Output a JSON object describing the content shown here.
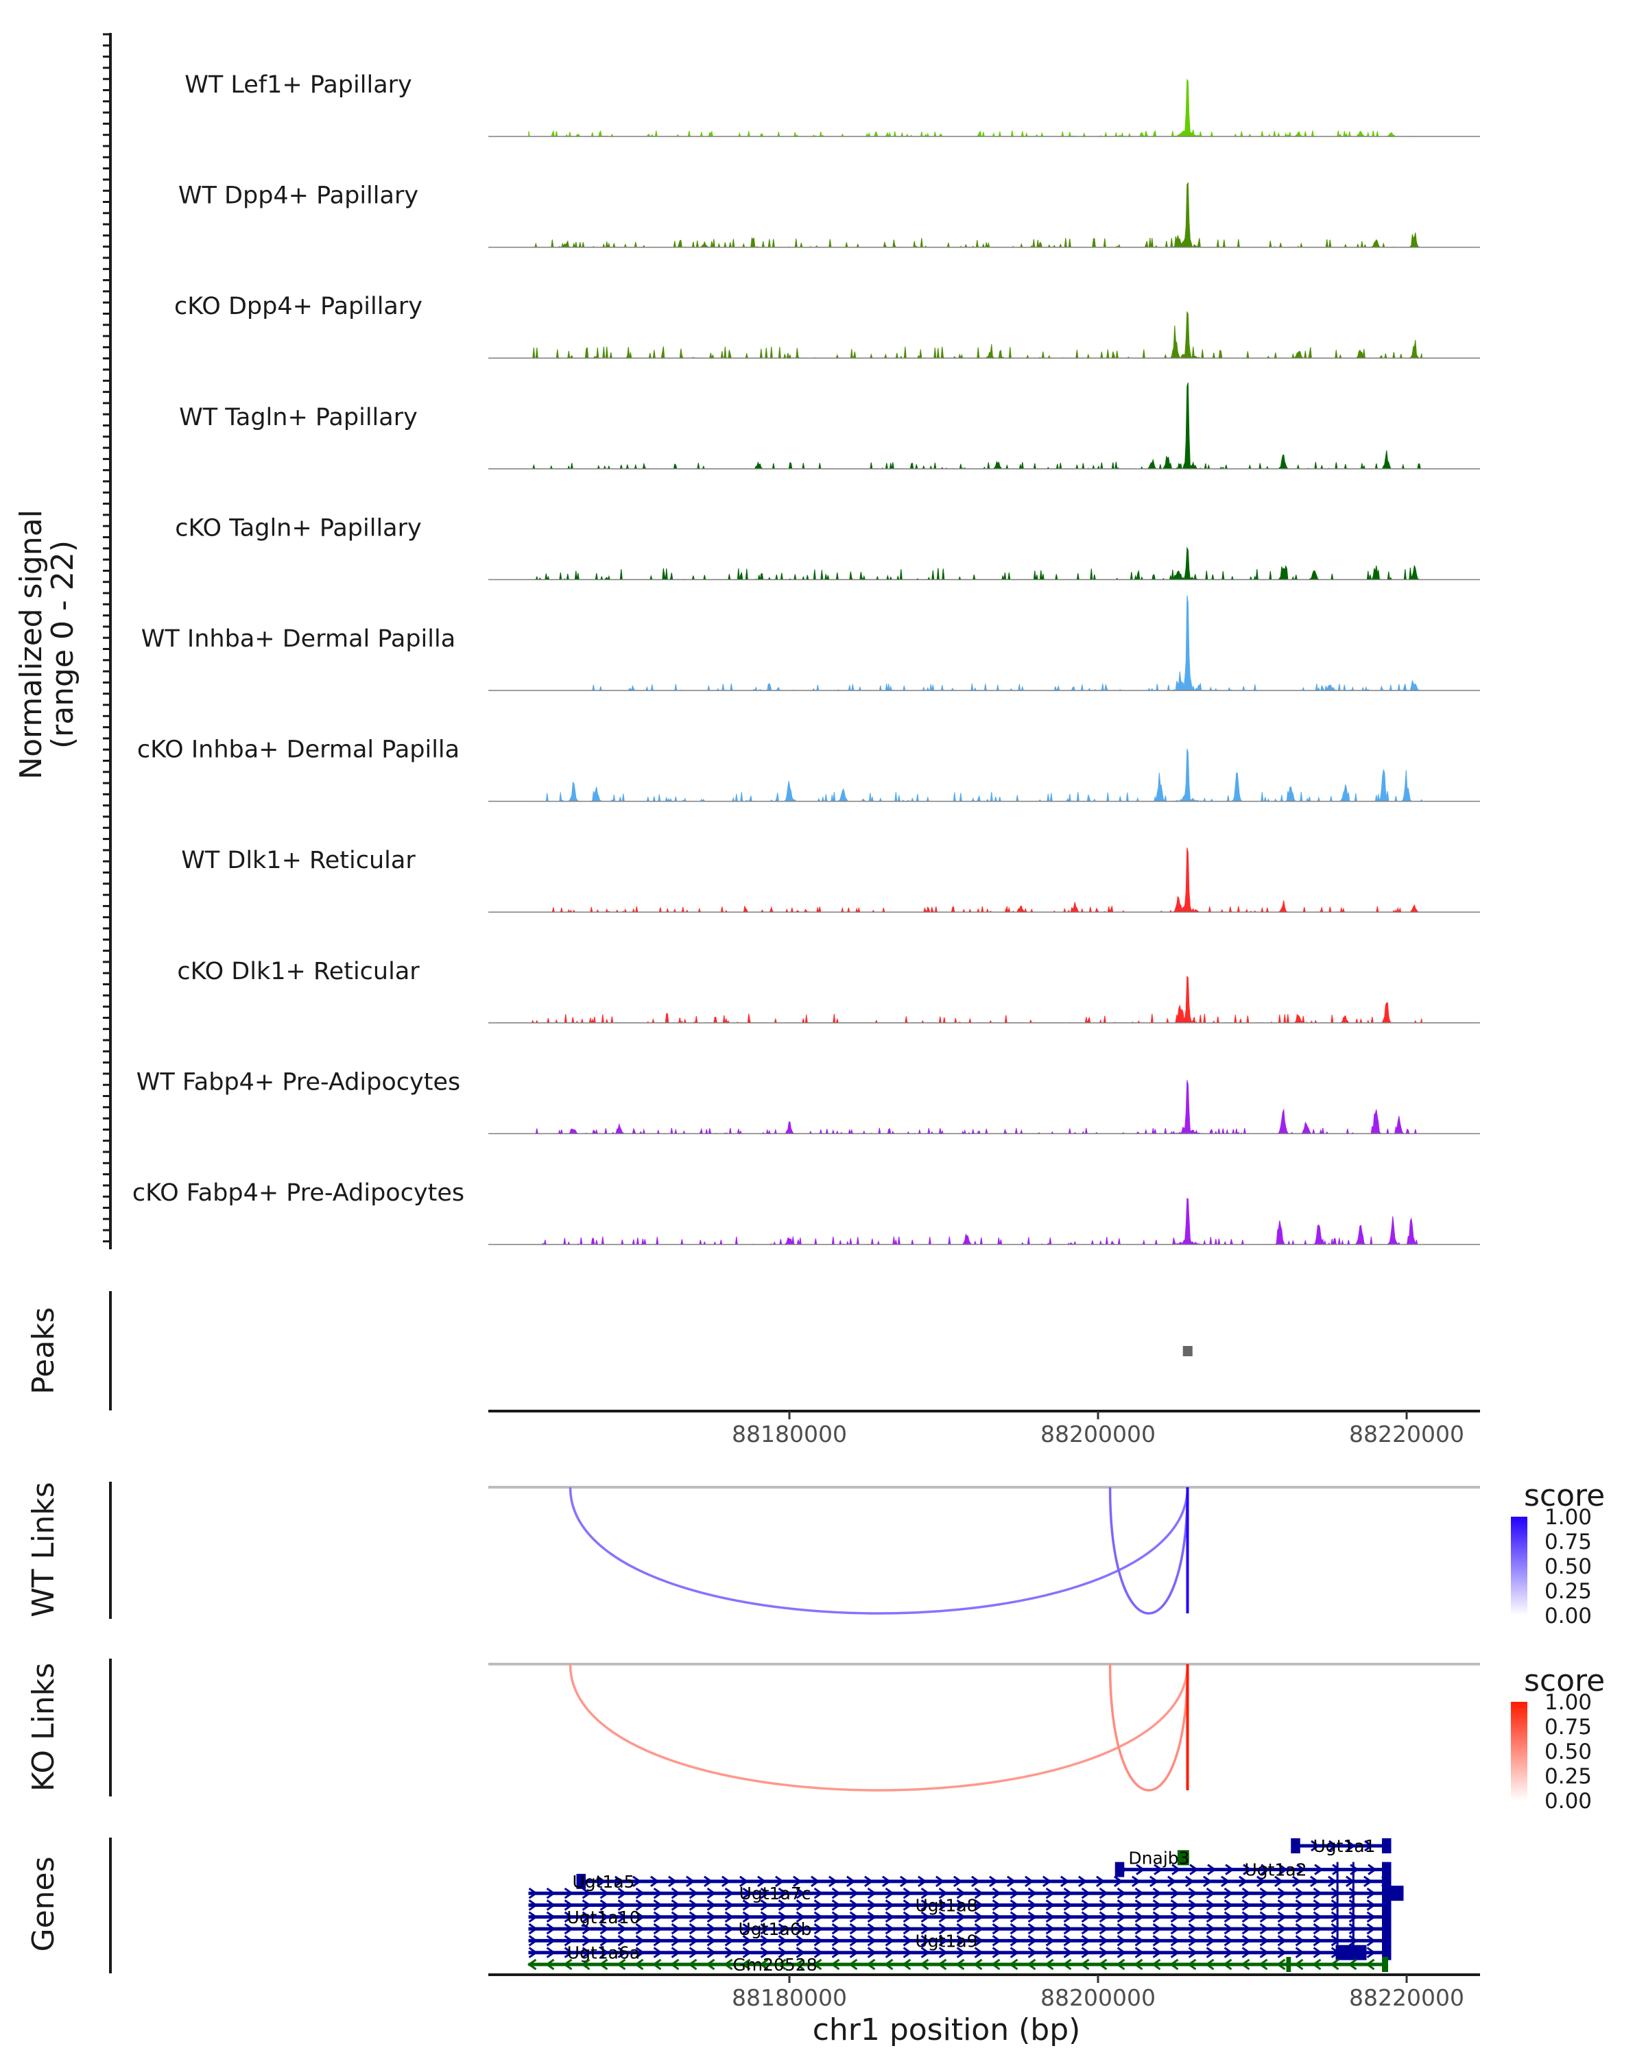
{
  "chart_data": {
    "type": "area",
    "title": "",
    "ylabel": "Normalized signal\n(range 0 - 22)",
    "ylabel_lines": [
      "Normalized signal",
      "(range 0 - 22)"
    ],
    "ylim": [
      0,
      22
    ],
    "xlabel": "chr1 position (bp)",
    "xlim": [
      88160460,
      88224810
    ],
    "xticks": [
      88180000,
      88200000,
      88220000
    ],
    "xtick_labels": [
      "88180000",
      "88200000",
      "88220000"
    ],
    "data_range": [
      88163100,
      88221000
    ],
    "main_peak_bp": 88205800,
    "tracks": [
      {
        "name": "WT Lef1+ Papillary",
        "color": "#66CC00",
        "main": 13,
        "noise": 0.5,
        "peaks": [
          [
            88213000,
            1
          ],
          [
            88217000,
            1.2
          ],
          [
            88219000,
            1
          ]
        ]
      },
      {
        "name": "WT Dpp4+ Papillary",
        "color": "#4C8C00",
        "main": 14,
        "noise": 0.8,
        "peaks": [
          [
            88165500,
            1
          ],
          [
            88174500,
            1.2
          ],
          [
            88218000,
            2
          ],
          [
            88220500,
            3
          ],
          [
            88205200,
            3
          ]
        ]
      },
      {
        "name": "cKO Dpp4+ Papillary",
        "color": "#4C8C00",
        "main": 10.4,
        "noise": 1,
        "peaks": [
          [
            88205000,
            5
          ],
          [
            88213000,
            2.5
          ],
          [
            88217000,
            2
          ],
          [
            88220500,
            3
          ],
          [
            88193000,
            1.5
          ]
        ]
      },
      {
        "name": "WT Tagln+ Papillary",
        "color": "#006400",
        "main": 20,
        "noise": 0.6,
        "peaks": [
          [
            88178000,
            1.7
          ],
          [
            88203500,
            2.4
          ],
          [
            88204500,
            3
          ],
          [
            88212000,
            3
          ],
          [
            88218700,
            3.5
          ],
          [
            88193500,
            1.8
          ]
        ]
      },
      {
        "name": "cKO Tagln+ Papillary",
        "color": "#006400",
        "main": 7,
        "noise": 1,
        "peaks": [
          [
            88205200,
            3
          ],
          [
            88212000,
            3.5
          ],
          [
            88214000,
            2.6
          ],
          [
            88218000,
            3.5
          ],
          [
            88220500,
            3
          ]
        ]
      },
      {
        "name": "WT Inhba+ Dermal Papilla",
        "color": "#55AAEE",
        "main": 20.6,
        "noise": 0.6,
        "peaks": [
          [
            88205300,
            3
          ],
          [
            88220500,
            2
          ],
          [
            88215000,
            1.5
          ]
        ]
      },
      {
        "name": "cKO Inhba+ Dermal Papilla",
        "color": "#55AAEE",
        "main": 11.6,
        "noise": 0.8,
        "peaks": [
          [
            88166000,
            4
          ],
          [
            88167500,
            3
          ],
          [
            88180000,
            4.5
          ],
          [
            88183500,
            3
          ],
          [
            88204000,
            6
          ],
          [
            88209000,
            6
          ],
          [
            88216000,
            4
          ],
          [
            88218500,
            7
          ],
          [
            88220000,
            5
          ],
          [
            88212500,
            3.5
          ]
        ]
      },
      {
        "name": "WT Dlk1+ Reticular",
        "color": "#FF2A2A",
        "main": 14.4,
        "noise": 0.5,
        "peaks": [
          [
            88205200,
            3
          ],
          [
            88195000,
            1.3
          ],
          [
            88198500,
            1.3
          ],
          [
            88212000,
            1.5
          ],
          [
            88220500,
            1.4
          ]
        ]
      },
      {
        "name": "cKO Dlk1+ Reticular",
        "color": "#FF2A2A",
        "main": 10,
        "noise": 0.8,
        "peaks": [
          [
            88205300,
            3
          ],
          [
            88218700,
            4
          ],
          [
            88213000,
            2
          ],
          [
            88216000,
            2
          ]
        ]
      },
      {
        "name": "WT Fabp4+ Pre-Adipocytes",
        "color": "#A020F0",
        "main": 12,
        "noise": 0.5,
        "peaks": [
          [
            88169000,
            2.5
          ],
          [
            88180000,
            2.5
          ],
          [
            88212000,
            6
          ],
          [
            88213500,
            3.5
          ],
          [
            88218000,
            6.5
          ],
          [
            88219500,
            3.5
          ],
          [
            88166000,
            1.5
          ]
        ]
      },
      {
        "name": "cKO Fabp4+ Pre-Adipocytes",
        "color": "#A020F0",
        "main": 11,
        "noise": 0.7,
        "peaks": [
          [
            88211800,
            5
          ],
          [
            88214300,
            5
          ],
          [
            88217000,
            4.5
          ],
          [
            88219100,
            6
          ],
          [
            88220300,
            5.5
          ],
          [
            88180000,
            2
          ],
          [
            88191500,
            2.5
          ]
        ]
      }
    ],
    "peaks_track": {
      "label": "Peaks",
      "regions": [
        [
          88205500,
          88206100
        ]
      ],
      "color": "#666666"
    },
    "links": [
      {
        "label": "WT Links",
        "legend_title": "score",
        "legend_ticks": [
          "1.00",
          "0.75",
          "0.50",
          "0.25",
          "0.00"
        ],
        "color": "#2200FF",
        "links": [
          {
            "start": 88165800,
            "end": 88205800,
            "score": 0.55
          },
          {
            "start": 88200780,
            "end": 88205800,
            "score": 0.6
          },
          {
            "start": 88205800,
            "end": 88205800,
            "score": 1.0
          }
        ]
      },
      {
        "label": "KO Links",
        "legend_title": "score",
        "legend_ticks": [
          "1.00",
          "0.75",
          "0.50",
          "0.25",
          "0.00"
        ],
        "color": "#FF1A00",
        "links": [
          {
            "start": 88165800,
            "end": 88205800,
            "score": 0.45
          },
          {
            "start": 88200780,
            "end": 88205800,
            "score": 0.5
          },
          {
            "start": 88205800,
            "end": 88205800,
            "score": 1.0
          }
        ]
      }
    ],
    "genes": {
      "label": "Genes",
      "items": [
        {
          "name": "Ugt1a1",
          "start": 88212620,
          "end": 88218714,
          "strand": "+",
          "color": "#000099",
          "exons": [
            [
              88212500,
              88213100
            ],
            [
              88218400,
              88219000
            ]
          ]
        },
        {
          "name": "Dnajb3",
          "start": 88205150,
          "end": 88205900,
          "strand": "-",
          "color": "#006400",
          "exons": [
            [
              88205150,
              88205900
            ]
          ]
        },
        {
          "name": "Ugt1a2",
          "start": 88201290,
          "end": 88218714,
          "strand": "+",
          "color": "#000099",
          "exons": [
            [
              88201100,
              88201700
            ],
            [
              88215450,
              88215500
            ],
            [
              88216480,
              88216530
            ],
            [
              88218400,
              88219000
            ]
          ]
        },
        {
          "name": "Ugt1a5",
          "start": 88166350,
          "end": 88218714,
          "strand": "+",
          "color": "#000099",
          "exons": [
            [
              88166200,
              88166800
            ],
            [
              88215450,
              88215500
            ],
            [
              88216480,
              88216530
            ],
            [
              88218400,
              88219000
            ]
          ]
        },
        {
          "name": "Ugt1a7c",
          "start": 88163090,
          "end": 88218714,
          "strand": "+",
          "color": "#000099",
          "exons": [
            [
              88215450,
              88215500
            ],
            [
              88216480,
              88216530
            ],
            [
              88218400,
              88219800
            ]
          ]
        },
        {
          "name": "Ugt1a8",
          "start": 88163090,
          "end": 88218714,
          "strand": "+",
          "color": "#000099",
          "exons": [
            [
              88215450,
              88215500
            ],
            [
              88216480,
              88216530
            ],
            [
              88218400,
              88219000
            ]
          ]
        },
        {
          "name": "Ugt1a10",
          "start": 88163090,
          "end": 88218714,
          "strand": "+",
          "color": "#000099",
          "exons": [
            [
              88215450,
              88215500
            ],
            [
              88216480,
              88216530
            ],
            [
              88218400,
              88219000
            ]
          ]
        },
        {
          "name": "Ugt1a6b",
          "start": 88163090,
          "end": 88218714,
          "strand": "+",
          "color": "#000099",
          "exons": [
            [
              88215450,
              88215500
            ],
            [
              88216480,
              88216530
            ],
            [
              88218400,
              88219000
            ]
          ]
        },
        {
          "name": "Ugt1a9",
          "start": 88163090,
          "end": 88218714,
          "strand": "+",
          "color": "#000099",
          "exons": [
            [
              88215450,
              88215500
            ],
            [
              88216480,
              88216530
            ],
            [
              88218400,
              88219000
            ]
          ]
        },
        {
          "name": "Ugt1a6a",
          "start": 88163090,
          "end": 88218714,
          "strand": "+",
          "color": "#000099",
          "exons": [
            [
              88215400,
              88217400
            ],
            [
              88218400,
              88219000
            ]
          ]
        },
        {
          "name": "Gm20528",
          "start": 88163090,
          "end": 88218714,
          "strand": "-",
          "color": "#006400",
          "exons": [
            [
              88212200,
              88212500
            ],
            [
              88218400,
              88218800
            ]
          ]
        }
      ]
    }
  }
}
